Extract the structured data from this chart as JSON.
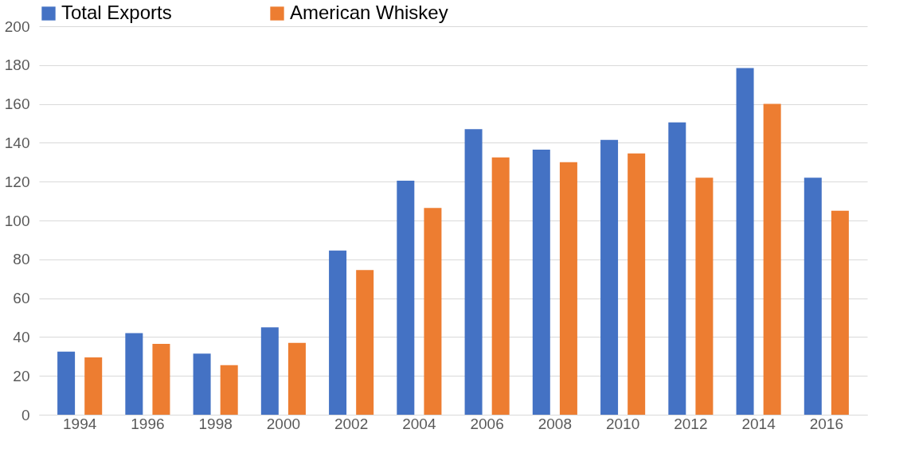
{
  "chart_data": {
    "type": "bar",
    "categories": [
      "1994",
      "1996",
      "1998",
      "2000",
      "2002",
      "2004",
      "2006",
      "2008",
      "2010",
      "2012",
      "2014",
      "2016",
      null
    ],
    "series": [
      {
        "name": "Total Exports",
        "color": "#4472c4",
        "values": [
          32.5,
          42,
          31.5,
          45,
          84.5,
          120.5,
          147,
          136.5,
          141.5,
          150.5,
          178.5,
          122,
          null
        ]
      },
      {
        "name": "American Whiskey",
        "color": "#ed7d31",
        "values": [
          29.5,
          36.5,
          25.5,
          37,
          74.5,
          106.5,
          132.5,
          130,
          134.5,
          122,
          160,
          105,
          null
        ]
      }
    ],
    "ylim": [
      0,
      200
    ],
    "yticks": [
      0,
      20,
      40,
      60,
      80,
      100,
      120,
      140,
      160,
      180,
      200
    ],
    "grid": "y",
    "legend": "top"
  }
}
